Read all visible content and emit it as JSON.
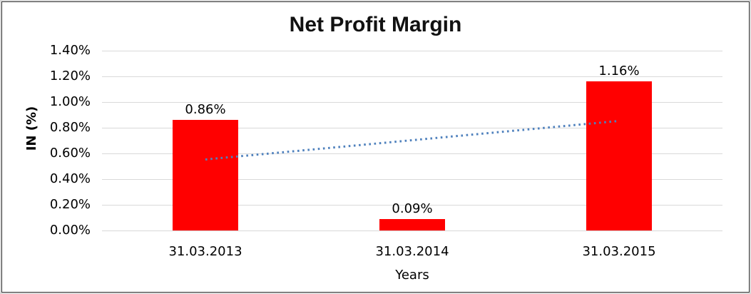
{
  "chart_data": {
    "type": "bar",
    "title": "Net Profit Margin",
    "xlabel": "Years",
    "ylabel": "IN (%)",
    "categories": [
      "31.03.2013",
      "31.03.2014",
      "31.03.2015"
    ],
    "series": [
      {
        "name": "Net Profit Margin",
        "values": [
          0.86,
          0.09,
          1.16
        ]
      }
    ],
    "data_labels": [
      "0.86%",
      "0.09%",
      "1.16%"
    ],
    "ylim": [
      0,
      1.4
    ],
    "ytick_step": 0.2,
    "yticks": [
      "0.00%",
      "0.20%",
      "0.40%",
      "0.60%",
      "0.80%",
      "1.00%",
      "1.20%",
      "1.40%"
    ],
    "grid": "horizontal",
    "legend": "none",
    "trendline": {
      "type": "linear",
      "style": "dotted",
      "y_start": 0.553,
      "y_end": 0.853
    },
    "colors": {
      "bar": "#ff0000",
      "trendline": "#4f81bd",
      "gridline": "#d9d9d9",
      "text": "#000000",
      "border": "#3a3a3a",
      "outer_band": "#d9d9d9",
      "background": "#ffffff"
    }
  }
}
